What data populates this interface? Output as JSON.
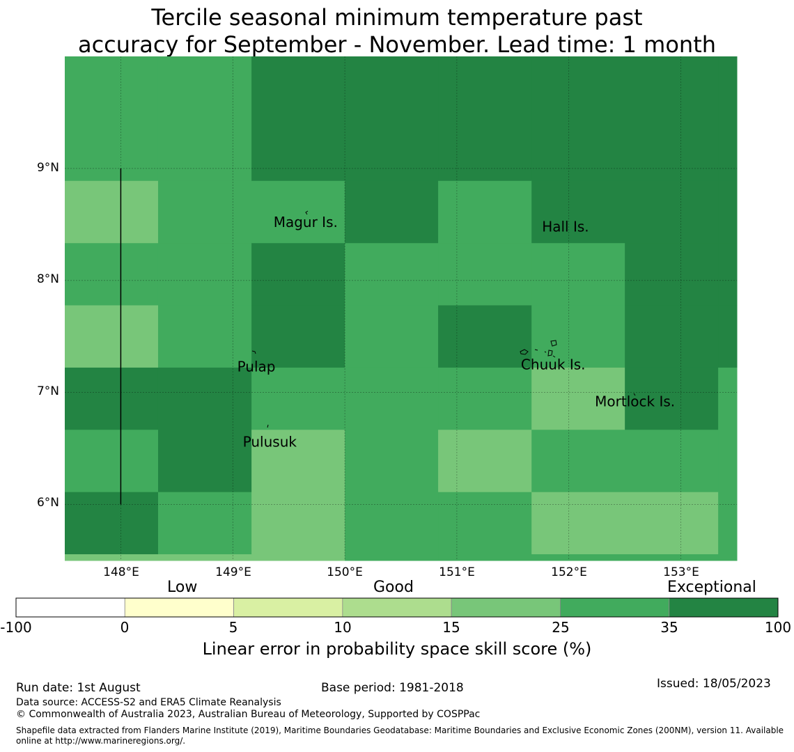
{
  "title": {
    "line1": "Tercile seasonal minimum temperature past",
    "line2": "accuracy for September - November. Lead time: 1 month"
  },
  "colors": {
    "exceptional": "#238443",
    "good_high": "#41ab5d",
    "good_mid": "#78c679",
    "good_low": "#addd8e",
    "low_high": "#d9f0a3",
    "low": "#ffffcc",
    "none": "#ffffff"
  },
  "map": {
    "lon_range": [
      147.5,
      153.5
    ],
    "lat_range": [
      5.5,
      10.0
    ],
    "lat_ticks": [
      {
        "value": 9,
        "label": "9°N"
      },
      {
        "value": 8,
        "label": "8°N"
      },
      {
        "value": 7,
        "label": "7°N"
      },
      {
        "value": 6,
        "label": "6°N"
      }
    ],
    "lon_ticks": [
      {
        "value": 148,
        "label": "148°E"
      },
      {
        "value": 149,
        "label": "149°E"
      },
      {
        "value": 150,
        "label": "150°E"
      },
      {
        "value": 151,
        "label": "151°E"
      },
      {
        "value": 152,
        "label": "152°E"
      },
      {
        "value": 153,
        "label": "153°E"
      }
    ],
    "grid_lon_edges": [
      147.5,
      148.333,
      149.167,
      150.0,
      150.833,
      151.667,
      152.5,
      153.333,
      153.5
    ],
    "grid_lat_edges": [
      10.0,
      9.0,
      8.889,
      8.333,
      7.778,
      7.222,
      6.667,
      6.111,
      5.556,
      5.5
    ],
    "cells": [
      [
        "good_high",
        "good_high",
        "exceptional",
        "exceptional",
        "exceptional",
        "exceptional",
        "exceptional",
        "exceptional"
      ],
      [
        "good_high",
        "good_high",
        "exceptional",
        "exceptional",
        "exceptional",
        "exceptional",
        "exceptional",
        "exceptional"
      ],
      [
        "good_mid",
        "good_high",
        "good_high",
        "exceptional",
        "good_high",
        "exceptional",
        "exceptional",
        "exceptional"
      ],
      [
        "good_high",
        "good_high",
        "exceptional",
        "good_high",
        "good_high",
        "good_high",
        "exceptional",
        "exceptional"
      ],
      [
        "good_mid",
        "good_high",
        "exceptional",
        "good_high",
        "exceptional",
        "good_high",
        "exceptional",
        "exceptional"
      ],
      [
        "exceptional",
        "exceptional",
        "good_high",
        "good_high",
        "good_high",
        "good_mid",
        "exceptional",
        "good_high"
      ],
      [
        "good_high",
        "exceptional",
        "good_mid",
        "good_high",
        "good_mid",
        "good_high",
        "good_high",
        "good_high"
      ],
      [
        "exceptional",
        "good_high",
        "good_mid",
        "good_high",
        "good_high",
        "good_mid",
        "good_mid",
        "good_high"
      ],
      [
        "good_mid",
        "good_mid",
        "good_mid",
        "good_high",
        "good_high",
        "good_high",
        "good_high",
        "good_high"
      ]
    ],
    "places": [
      {
        "name": "Magur Is.",
        "lon": 149.65,
        "lat": 8.52
      },
      {
        "name": "Hall Is.",
        "lon": 151.97,
        "lat": 8.48
      },
      {
        "name": "Pulap",
        "lon": 149.21,
        "lat": 7.23
      },
      {
        "name": "Chuuk Is.",
        "lon": 151.86,
        "lat": 7.25
      },
      {
        "name": "Mortlock Is.",
        "lon": 152.59,
        "lat": 6.92
      },
      {
        "name": "Pulusuk",
        "lon": 149.33,
        "lat": 6.56
      }
    ],
    "boundary_line": {
      "lon": 148.0,
      "lat_from": 9.0,
      "lat_to": 6.0
    }
  },
  "colorbar": {
    "categories": [
      {
        "label": "Low",
        "position": "left"
      },
      {
        "label": "Good",
        "position": "center"
      },
      {
        "label": "Exceptional",
        "position": "right"
      }
    ],
    "bins": [
      {
        "from": "-100",
        "to": "0",
        "color": "none"
      },
      {
        "from": "0",
        "to": "5",
        "color": "low"
      },
      {
        "from": "5",
        "to": "10",
        "color": "low_high"
      },
      {
        "from": "10",
        "to": "15",
        "color": "good_low"
      },
      {
        "from": "15",
        "to": "25",
        "color": "good_mid"
      },
      {
        "from": "25",
        "to": "35",
        "color": "good_high"
      },
      {
        "from": "35",
        "to": "100",
        "color": "exceptional"
      }
    ],
    "ticks": [
      "-100",
      "0",
      "5",
      "10",
      "15",
      "25",
      "35",
      "100"
    ],
    "label": "Linear error in probability space skill score (%)"
  },
  "footer": {
    "run_date": "Run date: 1st August",
    "base_period": "Base period: 1981-2018",
    "issued": "Issued: 18/05/2023",
    "data_source": "Data source: ACCESS-S2 and ERA5 Climate Reanalysis",
    "copyright": "© Commonwealth of Australia 2023, Australian Bureau of Meteorology, Supported by COSPPac",
    "shapefile": "Shapefile data extracted from Flanders Marine Institute (2019), Maritime Boundaries Geodatabase: Maritime Boundaries and Exclusive Economic Zones (200NM), version 11. Available online at http://www.marineregions.org/."
  }
}
